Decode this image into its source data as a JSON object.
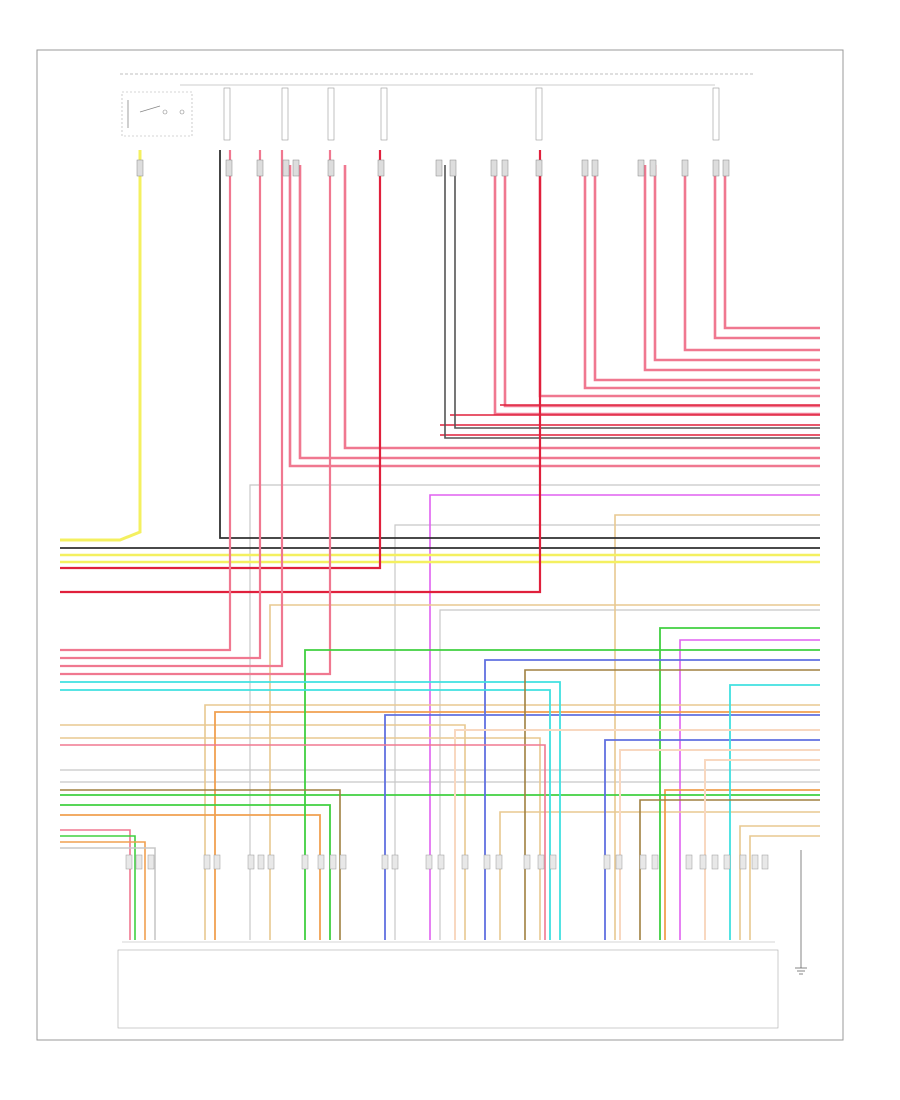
{
  "colors": {
    "pink": "#f07890",
    "red": "#e0203c",
    "yellow": "#f4f060",
    "gray": "#b0b0b0",
    "black": "#303030",
    "green": "#40d040",
    "blue": "#6070e0",
    "cyan": "#40e0e0",
    "orange": "#f0a050",
    "tan": "#e8c890",
    "violet": "#e060f0",
    "darkgreen": "#209020",
    "frame": "#999999"
  }
}
